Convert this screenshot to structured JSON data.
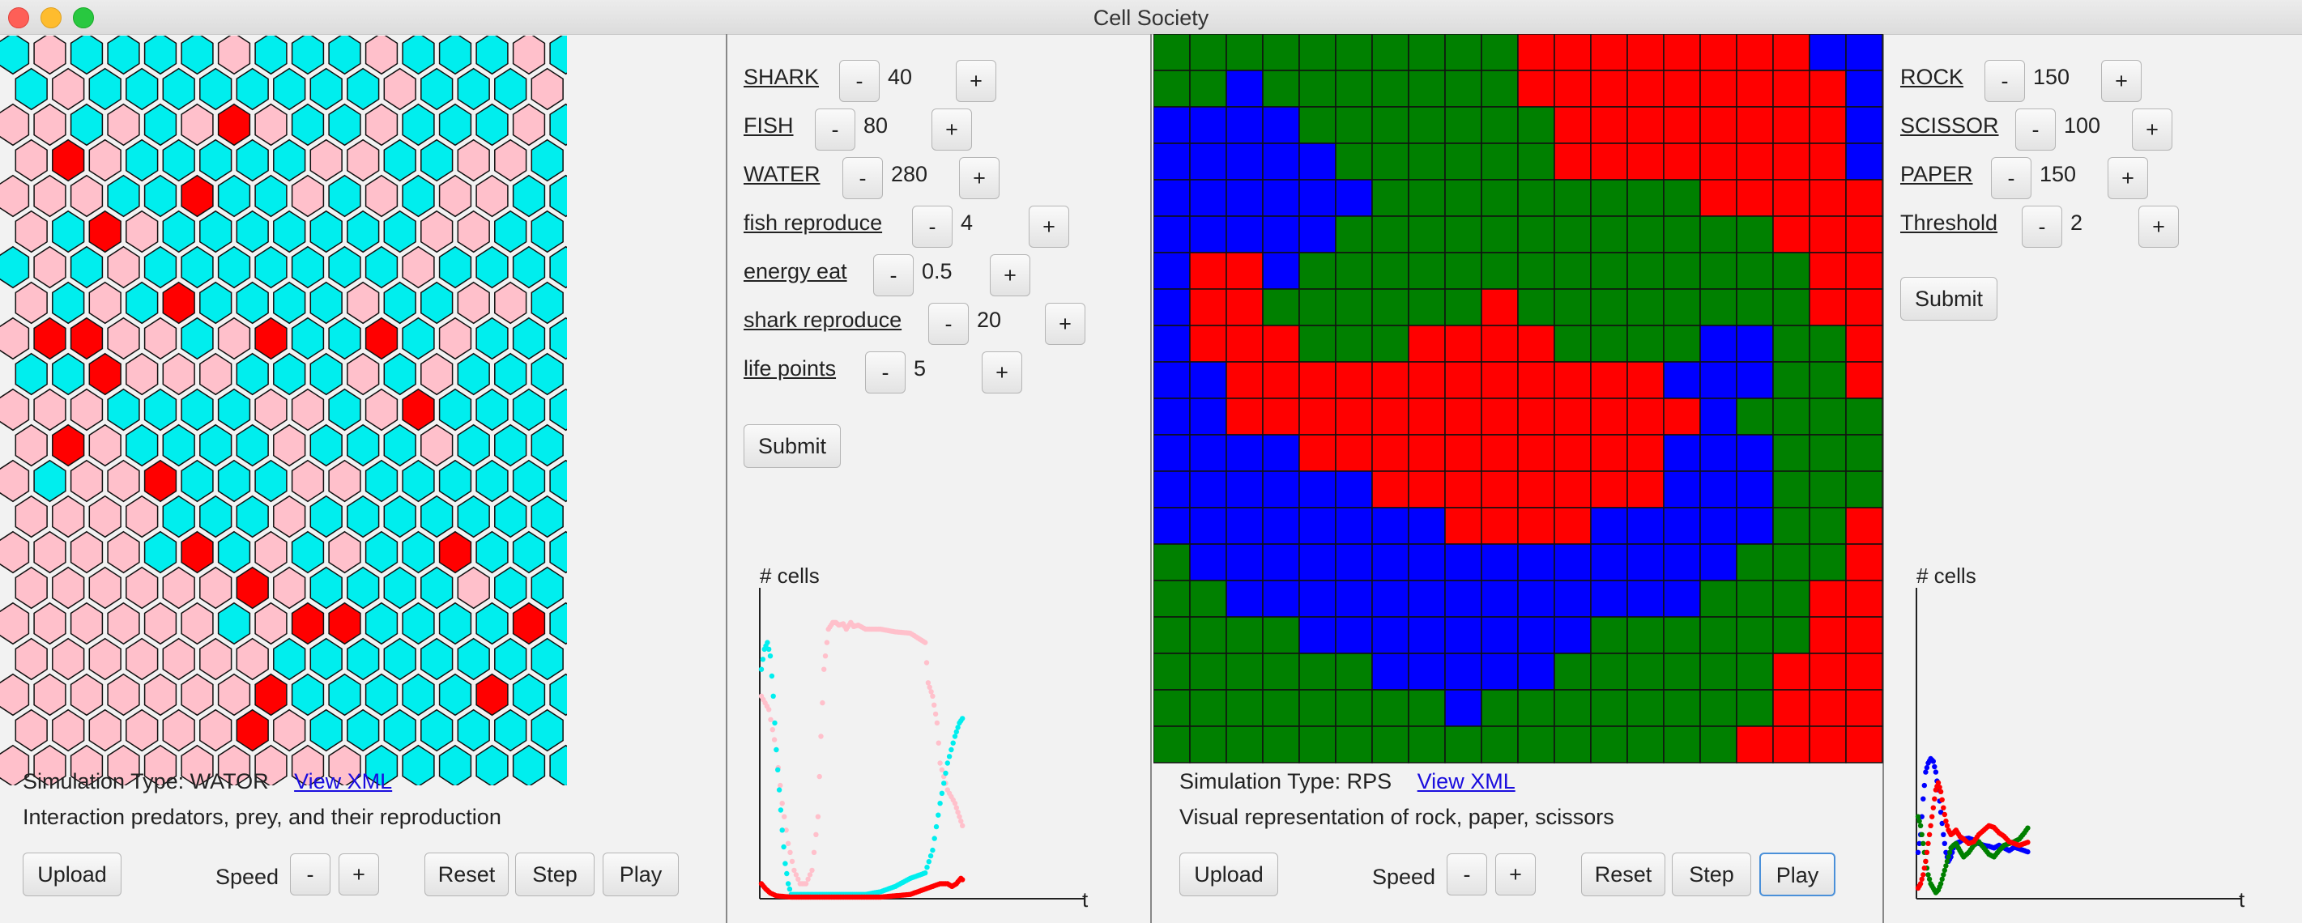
{
  "window": {
    "title": "Cell Society"
  },
  "left_sim": {
    "params": [
      {
        "label": "SHARK",
        "value": "40"
      },
      {
        "label": "FISH",
        "value": "80"
      },
      {
        "label": "WATER",
        "value": "280"
      },
      {
        "label": "fish reproduce",
        "value": "4"
      },
      {
        "label": "energy eat",
        "value": "0.5"
      },
      {
        "label": "shark reproduce",
        "value": "20"
      },
      {
        "label": "life points",
        "value": "5"
      }
    ],
    "submit_label": "Submit",
    "sim_type_label": "Simulation Type: WATOR",
    "view_xml_label": "View XML",
    "description": "Interaction predators, prey, and their reproduction",
    "upload_label": "Upload",
    "speed_label": "Speed",
    "minus_label": "-",
    "plus_label": "+",
    "reset_label": "Reset",
    "step_label": "Step",
    "play_label": "Play",
    "chart_ylabel": "# cells",
    "chart_xlabel": "t",
    "colors": {
      "water": "#ffc0cb",
      "fish": "#00eeee",
      "shark": "#ff0000"
    }
  },
  "right_sim": {
    "params": [
      {
        "label": "ROCK",
        "value": "150"
      },
      {
        "label": "SCISSOR",
        "value": "100"
      },
      {
        "label": "PAPER",
        "value": "150"
      },
      {
        "label": "Threshold",
        "value": "2"
      }
    ],
    "submit_label": "Submit",
    "sim_type_label": "Simulation Type: RPS",
    "view_xml_label": "View XML",
    "description": "Visual representation of rock, paper, scissors",
    "upload_label": "Upload",
    "speed_label": "Speed",
    "minus_label": "-",
    "plus_label": "+",
    "reset_label": "Reset",
    "step_label": "Step",
    "play_label": "Play",
    "chart_ylabel": "# cells",
    "chart_xlabel": "t",
    "colors": {
      "green": "#008000",
      "red": "#ff0000",
      "blue": "#0000ff"
    }
  },
  "wator_grid": {
    "rows": [
      "FWFFFFWFFFWFFFWF",
      "FWFFFFFFFFWFFFWF",
      "WWFWFWSWFFWFFFWF",
      "WSWFFFFFWWFFWWFF",
      "WWWFFSFFWFWFWWFF",
      "WFSWFFFFFFFWWFFF",
      "FWFWFFFFFFFWFFFF",
      "WFWFSFFFFWFFWWFF",
      "WSSWWFWSFFSFWFFF",
      "FFSWWWFFFWFWFFFF",
      "WWWFFFFWWFWSFFFF",
      "WSWFFFFWFFFWFFFF",
      "WFWWSFFFWWFFFFFF",
      "WWWWFFFWFFFFFFFF",
      "WWWWFSFWFWFFSFFF",
      "WWWWWWSWFFFFWFFF",
      "WWWWWWFWSSFFFFSF",
      "WWWWWWWFFFFFFFFF",
      "WWWWWWWSFFFFFSFF",
      "WWWWWWSWFFFFFFFF",
      "WWWWWWWWWWFFFFFF"
    ]
  },
  "rps_grid": {
    "rows": [
      "GGGGGGGGGGRRRRRRRRBB",
      "GGBGGGGGGGRRRRRRRRRB",
      "BBBBGGGGGGGRRRRRRRRB",
      "BBBBBGGGGGGRRRRRRRRB",
      "BBBBBBGGGGGGGGGRRRRR",
      "BBBBBGGGGGGGGGGGGRRR",
      "BRRBGGGGGGGGGGGGGGRR",
      "BRRGGGGGGRGGGGGGGGRR",
      "BRRRGGGRRRRGGGGBBGGR",
      "BBRRRRRRRRRRRRBBBGGR",
      "BBRRRRRRRRRRRRRBGGGG",
      "BBBBRRRRRRRRRRBBBGGG",
      "BBBBBBRRRRRRRRBBBGGG",
      "BBBBBBBBRRRRBBBBBGGR",
      "GBBBBBBBBBBBBBBBGGGR",
      "GGBBBBBBBBBBBBBGGGRR",
      "GGGGBBBBBBBBGGGGGGRR",
      "GGGGGGBBBBBGGGGGGRRR",
      "GGGGGGGGBGGGGGGGGRRR",
      "GGGGGGGGGGGGGGGGRRRR"
    ]
  },
  "chart_data": [
    {
      "type": "scatter",
      "ylabel": "# cells",
      "xlabel": "t",
      "series": [
        {
          "color": "#ffc0cb",
          "x": [
            0,
            5,
            10,
            14,
            18,
            22,
            26,
            30,
            34,
            38,
            40,
            42,
            45,
            48,
            50,
            52,
            55,
            57,
            60,
            62,
            65,
            70,
            80,
            90,
            100,
            110,
            112,
            115,
            118,
            120,
            125,
            130,
            133,
            136
          ],
          "y": [
            150,
            140,
            110,
            70,
            40,
            20,
            10,
            10,
            20,
            60,
            120,
            170,
            200,
            205,
            205,
            203,
            204,
            200,
            205,
            202,
            203,
            200,
            200,
            198,
            197,
            190,
            160,
            150,
            130,
            100,
            80,
            70,
            60,
            50
          ]
        },
        {
          "color": "#00eeee",
          "x": [
            0,
            2,
            4,
            6,
            8,
            10,
            12,
            14,
            16,
            18,
            20,
            24,
            28,
            32,
            36,
            40,
            45,
            50,
            60,
            70,
            80,
            90,
            100,
            105,
            110,
            115,
            120,
            125,
            130,
            133,
            136
          ],
          "y": [
            170,
            185,
            190,
            180,
            150,
            110,
            80,
            50,
            25,
            10,
            2,
            2,
            2,
            2,
            2,
            2,
            2,
            2,
            2,
            2,
            4,
            8,
            14,
            16,
            18,
            35,
            70,
            100,
            120,
            130,
            135
          ]
        },
        {
          "color": "#ff0000",
          "x": [
            0,
            3,
            6,
            10,
            20,
            40,
            60,
            80,
            100,
            110,
            115,
            120,
            125,
            128,
            131,
            134,
            136
          ],
          "y": [
            10,
            6,
            3,
            1,
            0,
            0,
            0,
            0,
            2,
            6,
            8,
            10,
            10,
            8,
            10,
            14,
            12
          ]
        }
      ]
    },
    {
      "type": "scatter",
      "ylabel": "# cells",
      "xlabel": "t",
      "series": [
        {
          "color": "#0000ff",
          "x": [
            0,
            2,
            4,
            6,
            8,
            10,
            12,
            14,
            16,
            18,
            20,
            22,
            24,
            26,
            28,
            30,
            33,
            36,
            40,
            44,
            48,
            52,
            56,
            60,
            64,
            68,
            72,
            76,
            80,
            84,
            88
          ],
          "y": [
            50,
            70,
            110,
            140,
            150,
            155,
            152,
            140,
            120,
            95,
            70,
            50,
            40,
            45,
            55,
            60,
            62,
            65,
            66,
            64,
            60,
            58,
            57,
            55,
            58,
            55,
            52,
            56,
            54,
            52,
            50
          ]
        },
        {
          "color": "#008000",
          "x": [
            0,
            2,
            4,
            6,
            8,
            10,
            12,
            14,
            16,
            18,
            20,
            22,
            24,
            26,
            28,
            30,
            33,
            36,
            40,
            44,
            48,
            52,
            56,
            60,
            64,
            68,
            72,
            76,
            80,
            84,
            88
          ],
          "y": [
            90,
            80,
            60,
            40,
            25,
            15,
            10,
            5,
            8,
            15,
            25,
            35,
            45,
            55,
            58,
            60,
            52,
            45,
            50,
            58,
            62,
            55,
            48,
            45,
            52,
            58,
            60,
            62,
            65,
            72,
            80
          ]
        },
        {
          "color": "#ff0000",
          "x": [
            0,
            2,
            4,
            6,
            8,
            10,
            12,
            14,
            16,
            18,
            20,
            22,
            24,
            26,
            28,
            30,
            33,
            36,
            40,
            44,
            48,
            52,
            56,
            60,
            64,
            68,
            72,
            76,
            80,
            84,
            88
          ],
          "y": [
            10,
            15,
            25,
            40,
            60,
            80,
            100,
            120,
            128,
            118,
            100,
            85,
            75,
            70,
            72,
            75,
            68,
            65,
            60,
            62,
            70,
            75,
            80,
            78,
            72,
            68,
            62,
            60,
            58,
            60,
            62
          ]
        }
      ]
    }
  ]
}
